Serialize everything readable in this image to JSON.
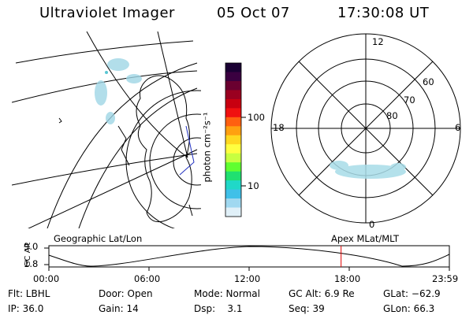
{
  "header": {
    "instrument": "Ultraviolet Imager",
    "date": "05 Oct 07",
    "time": "17:30:08 UT"
  },
  "colorbar": {
    "label": "photon cm⁻²s⁻¹",
    "scale": "log",
    "ticks": [
      "100",
      "10"
    ],
    "colors": [
      "#1a0033",
      "#3a0040",
      "#6a0030",
      "#9a0020",
      "#c80010",
      "#f01010",
      "#ff6010",
      "#ffa010",
      "#ffd820",
      "#ffff40",
      "#c8ff40",
      "#60ff30",
      "#20e070",
      "#20d8c8",
      "#40c0e8",
      "#a0d8f0",
      "#e0f0f8"
    ]
  },
  "polar_plot": {
    "lat_labels": [
      "60",
      "70",
      "80"
    ],
    "mlt_labels": {
      "top": "12",
      "bottom": "0",
      "left": "18",
      "right": "6"
    }
  },
  "timeline": {
    "y_axis_label": "GC Alt",
    "y_ticks": [
      "9.0",
      "1.8"
    ],
    "left_caption": "Geographic Lat/Lon",
    "right_caption": "Apex MLat/MLT",
    "time_ticks": [
      "00:00",
      "06:00",
      "12:00",
      "18:00",
      "23:59"
    ],
    "marker_time": "17:30",
    "marker_color": "#e00000"
  },
  "status": {
    "filter": "Flt: LBHL",
    "ip": "IP: 36.0",
    "door": "Door: Open",
    "gain": "Gain: 14",
    "mode": "Mode: Normal",
    "dsp": "Dsp:    3.1",
    "gc_alt": "GC Alt: 6.9 Re",
    "seq": "Seq: 39",
    "glat": "GLat: −62.9",
    "glon": "GLon: 66.3"
  }
}
